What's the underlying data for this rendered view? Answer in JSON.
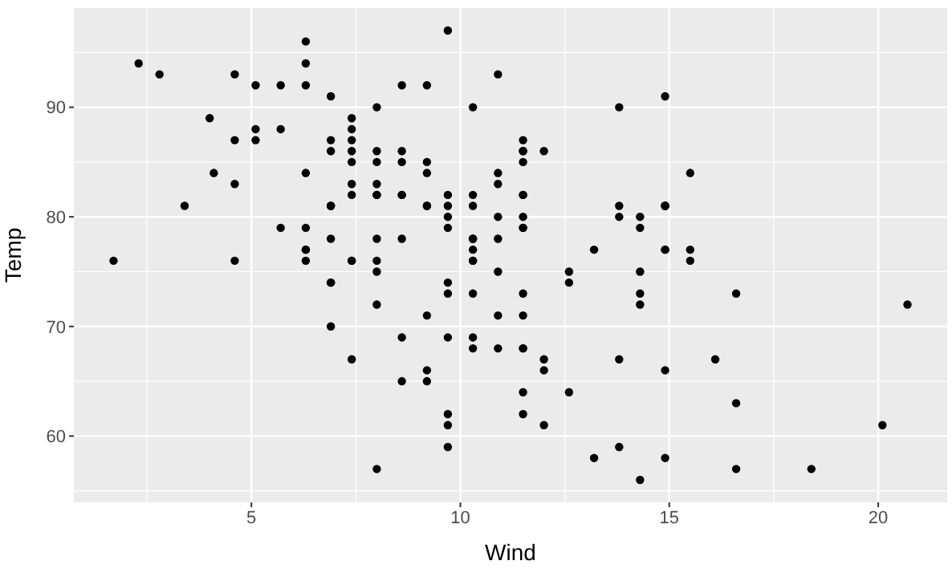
{
  "chart_data": {
    "type": "scatter",
    "xlabel": "Wind",
    "ylabel": "Temp",
    "x": [
      7.4,
      8.0,
      12.6,
      11.5,
      14.3,
      14.9,
      8.6,
      13.8,
      20.1,
      8.6,
      6.9,
      9.7,
      9.2,
      10.9,
      13.2,
      11.5,
      12.0,
      18.4,
      11.5,
      9.7,
      9.7,
      16.6,
      9.7,
      12.0,
      16.6,
      14.9,
      8.0,
      12.0,
      14.9,
      5.7,
      7.4,
      8.6,
      9.7,
      16.1,
      9.2,
      8.6,
      14.3,
      9.7,
      6.9,
      13.8,
      11.5,
      10.9,
      9.2,
      8.0,
      13.8,
      11.5,
      14.9,
      20.7,
      9.2,
      11.5,
      10.3,
      6.3,
      1.7,
      4.6,
      6.3,
      8.0,
      8.0,
      10.3,
      11.5,
      14.9,
      8.0,
      4.1,
      9.2,
      9.2,
      10.9,
      4.6,
      10.9,
      5.1,
      6.3,
      5.7,
      7.4,
      8.6,
      14.3,
      14.9,
      14.9,
      14.3,
      6.9,
      10.3,
      6.3,
      5.1,
      11.5,
      6.9,
      9.7,
      11.5,
      8.6,
      8.0,
      8.6,
      12.0,
      7.4,
      7.4,
      7.4,
      9.2,
      6.9,
      13.8,
      7.4,
      6.9,
      7.4,
      4.6,
      4.0,
      10.3,
      8.0,
      8.6,
      11.5,
      11.5,
      11.5,
      9.7,
      11.5,
      10.3,
      6.3,
      7.4,
      10.9,
      10.3,
      15.5,
      14.3,
      12.6,
      9.7,
      3.4,
      8.0,
      5.7,
      9.7,
      2.3,
      6.3,
      6.3,
      6.9,
      5.1,
      2.8,
      4.6,
      7.4,
      15.5,
      10.9,
      10.3,
      10.9,
      9.7,
      14.9,
      15.5,
      6.3,
      10.9,
      11.5,
      6.9,
      13.8,
      10.3,
      10.3,
      8.0,
      12.6,
      9.2,
      10.3,
      10.3,
      16.6,
      6.9,
      13.2,
      14.3,
      8.0,
      11.5
    ],
    "values": [
      67,
      72,
      74,
      62,
      56,
      66,
      65,
      59,
      61,
      69,
      74,
      69,
      66,
      68,
      58,
      64,
      66,
      57,
      68,
      62,
      59,
      73,
      61,
      61,
      57,
      58,
      57,
      67,
      81,
      79,
      76,
      78,
      74,
      67,
      84,
      85,
      79,
      82,
      87,
      90,
      87,
      93,
      92,
      82,
      80,
      79,
      77,
      72,
      65,
      73,
      76,
      77,
      76,
      76,
      76,
      75,
      78,
      73,
      80,
      77,
      83,
      84,
      85,
      81,
      84,
      83,
      83,
      88,
      92,
      92,
      89,
      82,
      73,
      81,
      91,
      80,
      81,
      82,
      84,
      87,
      85,
      74,
      81,
      82,
      86,
      85,
      82,
      86,
      88,
      86,
      83,
      81,
      81,
      81,
      82,
      86,
      85,
      87,
      89,
      90,
      90,
      92,
      86,
      86,
      82,
      80,
      79,
      77,
      79,
      76,
      78,
      78,
      77,
      72,
      75,
      79,
      81,
      86,
      88,
      97,
      94,
      96,
      94,
      91,
      92,
      93,
      93,
      87,
      84,
      80,
      78,
      75,
      73,
      81,
      76,
      77,
      71,
      71,
      78,
      67,
      76,
      68,
      82,
      64,
      71,
      81,
      69,
      63,
      70,
      77,
      75,
      76,
      68
    ],
    "color": "#000000",
    "marker": "circle",
    "xlim": [
      0.75,
      21.65
    ],
    "xticks": [
      5,
      10,
      15,
      20
    ],
    "ylim": [
      53.95,
      99.05
    ],
    "yticks": [
      60,
      70,
      80,
      90
    ],
    "grid": true
  }
}
